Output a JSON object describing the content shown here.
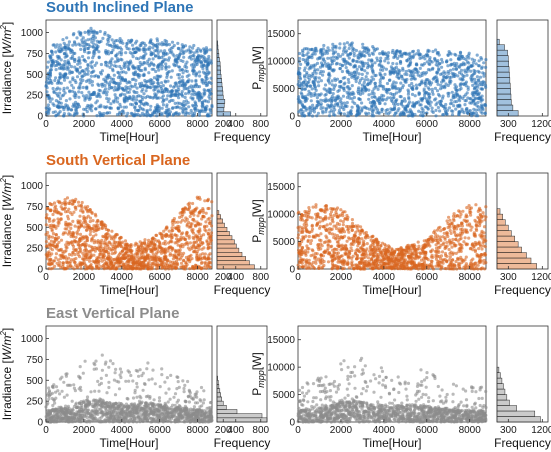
{
  "rows": [
    {
      "title": "South Inclined Plane",
      "color": "#2e75b6"
    },
    {
      "title": "South Vertical Plane",
      "color": "#d9661f"
    },
    {
      "title": "East Vertical Plane",
      "color": "#8c8c8c"
    }
  ],
  "labels": {
    "x_time": "Time[Hour]",
    "y_irradiance": "Irradiance [W/m",
    "y_irradiance_sup": "2",
    "y_irradiance_end": "]",
    "y_power_main": "P",
    "y_power_sub": "mpp",
    "y_power_end": "[W]",
    "x_frequency": "Frequency"
  },
  "chart_data": [
    {
      "row": 0,
      "panel": "scatter",
      "type": "scatter",
      "title": "South Inclined Plane",
      "xlabel": "Time[Hour]",
      "ylabel": "Irradiance [W/m2]",
      "xlim": [
        0,
        8760
      ],
      "ylim": [
        0,
        1150
      ],
      "xticks": [
        0,
        2000,
        4000,
        6000,
        8000
      ],
      "yticks": [
        0,
        250,
        500,
        750,
        1000
      ],
      "envelope_x": [
        0,
        1000,
        2000,
        2500,
        3000,
        4000,
        5000,
        6000,
        7000,
        8000,
        8760
      ],
      "envelope_y": [
        800,
        950,
        1040,
        1060,
        1030,
        920,
        900,
        930,
        870,
        840,
        820
      ]
    },
    {
      "row": 0,
      "panel": "histogram",
      "type": "bar",
      "orientation": "horizontal",
      "xlabel": "Frequency",
      "xticks": [
        200,
        400,
        800
      ],
      "xlim": [
        100,
        900
      ],
      "ylim": [
        0,
        1150
      ],
      "bins": [
        0,
        50,
        100,
        150,
        200,
        250,
        300,
        350,
        400,
        450,
        500,
        550,
        600,
        650,
        700,
        750,
        800,
        850,
        900,
        950,
        1000,
        1050
      ],
      "counts": [
        320,
        210,
        215,
        225,
        200,
        195,
        190,
        180,
        175,
        165,
        160,
        155,
        150,
        140,
        130,
        120,
        115,
        110,
        100,
        80,
        40
      ]
    },
    {
      "row": 0,
      "panel": "scatter",
      "type": "scatter",
      "xlabel": "Time[Hour]",
      "ylabel": "Pmpp[W]",
      "xlim": [
        0,
        8760
      ],
      "ylim": [
        0,
        17500
      ],
      "xticks": [
        0,
        2000,
        4000,
        6000,
        8000
      ],
      "yticks": [
        0,
        5000,
        10000,
        15000
      ],
      "envelope_x": [
        0,
        1000,
        2000,
        2500,
        3000,
        4000,
        5000,
        6000,
        7000,
        8000,
        8760
      ],
      "envelope_y": [
        12000,
        12800,
        13300,
        13500,
        13100,
        12200,
        11700,
        12200,
        11800,
        11500,
        11000
      ]
    },
    {
      "row": 0,
      "panel": "histogram",
      "type": "bar",
      "orientation": "horizontal",
      "xlabel": "Frequency",
      "xticks": [
        300,
        1200
      ],
      "xlim": [
        0,
        1350
      ],
      "ylim": [
        0,
        17500
      ],
      "bins": [
        0,
        1000,
        2000,
        3000,
        4000,
        5000,
        6000,
        7000,
        8000,
        9000,
        10000,
        11000,
        12000,
        13000
      ],
      "counts": [
        560,
        420,
        380,
        370,
        360,
        350,
        340,
        330,
        320,
        310,
        300,
        280,
        200,
        60
      ]
    },
    {
      "row": 1,
      "panel": "scatter",
      "type": "scatter",
      "title": "South Vertical Plane",
      "xlabel": "Time[Hour]",
      "ylabel": "Irradiance [W/m2]",
      "xlim": [
        0,
        8760
      ],
      "ylim": [
        0,
        1150
      ],
      "xticks": [
        0,
        2000,
        4000,
        6000,
        8000
      ],
      "yticks": [
        0,
        250,
        500,
        750,
        1000
      ],
      "envelope_x": [
        0,
        1000,
        2000,
        3000,
        4000,
        4500,
        5000,
        6000,
        7000,
        8000,
        8760
      ],
      "envelope_y": [
        780,
        880,
        800,
        560,
        380,
        300,
        330,
        430,
        680,
        880,
        820
      ]
    },
    {
      "row": 1,
      "panel": "histogram",
      "type": "bar",
      "orientation": "horizontal",
      "xlabel": "Frequency",
      "xticks": [
        200,
        400,
        800
      ],
      "xlim": [
        100,
        900
      ],
      "ylim": [
        0,
        1150
      ],
      "bins": [
        0,
        50,
        100,
        150,
        200,
        250,
        300,
        350,
        400,
        450,
        500,
        550,
        600,
        650,
        700,
        750,
        800,
        850
      ],
      "counts": [
        700,
        620,
        560,
        500,
        450,
        410,
        380,
        340,
        300,
        260,
        220,
        190,
        160,
        130,
        100,
        70,
        40
      ]
    },
    {
      "row": 1,
      "panel": "scatter",
      "type": "scatter",
      "xlabel": "Time[Hour]",
      "ylabel": "Pmpp[W]",
      "xlim": [
        0,
        8760
      ],
      "ylim": [
        0,
        17500
      ],
      "xticks": [
        0,
        2000,
        4000,
        6000,
        8000
      ],
      "yticks": [
        0,
        5000,
        10000,
        15000
      ],
      "envelope_x": [
        0,
        1000,
        2000,
        3000,
        4000,
        4500,
        5000,
        6000,
        7000,
        8000,
        8760
      ],
      "envelope_y": [
        10500,
        12200,
        11200,
        7500,
        4600,
        3700,
        4200,
        5600,
        9500,
        12000,
        11500
      ]
    },
    {
      "row": 1,
      "panel": "histogram",
      "type": "bar",
      "orientation": "horizontal",
      "xlabel": "Frequency",
      "xticks": [
        300,
        1200
      ],
      "xlim": [
        0,
        1350
      ],
      "ylim": [
        0,
        17500
      ],
      "bins": [
        0,
        1000,
        2000,
        3000,
        4000,
        5000,
        6000,
        7000,
        8000,
        9000,
        10000,
        11000
      ],
      "counts": [
        1050,
        900,
        780,
        650,
        560,
        470,
        380,
        300,
        220,
        150,
        80
      ]
    },
    {
      "row": 2,
      "panel": "scatter",
      "type": "scatter",
      "title": "East Vertical Plane",
      "xlabel": "Time[Hour]",
      "ylabel": "Irradiance [W/m2]",
      "xlim": [
        0,
        8760
      ],
      "ylim": [
        0,
        1150
      ],
      "xticks": [
        0,
        2000,
        4000,
        6000,
        8000
      ],
      "yticks": [
        0,
        250,
        500,
        750,
        1000
      ],
      "envelope_x": [
        0,
        1000,
        2000,
        2800,
        3500,
        4500,
        5500,
        6500,
        7500,
        8760
      ],
      "envelope_y": [
        420,
        560,
        800,
        880,
        720,
        680,
        750,
        580,
        500,
        420
      ]
    },
    {
      "row": 2,
      "panel": "histogram",
      "type": "bar",
      "orientation": "horizontal",
      "xlabel": "Frequency",
      "xticks": [
        200,
        400,
        800
      ],
      "xlim": [
        100,
        900
      ],
      "ylim": [
        0,
        1150
      ],
      "bins": [
        0,
        50,
        100,
        150,
        200,
        250,
        300,
        350,
        400,
        450,
        500,
        550,
        600,
        650,
        700
      ],
      "counts": [
        900,
        820,
        420,
        250,
        200,
        175,
        160,
        145,
        130,
        120,
        110,
        100,
        90,
        80
      ]
    },
    {
      "row": 2,
      "panel": "scatter",
      "type": "scatter",
      "xlabel": "Time[Hour]",
      "ylabel": "Pmpp[W]",
      "xlim": [
        0,
        8760
      ],
      "ylim": [
        0,
        17500
      ],
      "xticks": [
        0,
        2000,
        4000,
        6000,
        8000
      ],
      "yticks": [
        0,
        5000,
        10000,
        15000
      ],
      "envelope_x": [
        0,
        1000,
        2000,
        2800,
        3500,
        4500,
        5500,
        6500,
        7500,
        8760
      ],
      "envelope_y": [
        6500,
        8200,
        11200,
        12200,
        10200,
        9500,
        10500,
        8300,
        7200,
        6200
      ]
    },
    {
      "row": 2,
      "panel": "histogram",
      "type": "bar",
      "orientation": "horizontal",
      "xlabel": "Frequency",
      "xticks": [
        300,
        1200
      ],
      "xlim": [
        0,
        1350
      ],
      "ylim": [
        0,
        17500
      ],
      "bins": [
        0,
        1000,
        2000,
        3000,
        4000,
        5000,
        6000,
        7000,
        8000,
        9000
      ],
      "counts": [
        1150,
        1000,
        520,
        330,
        260,
        210,
        170,
        130,
        90,
        50
      ]
    }
  ]
}
